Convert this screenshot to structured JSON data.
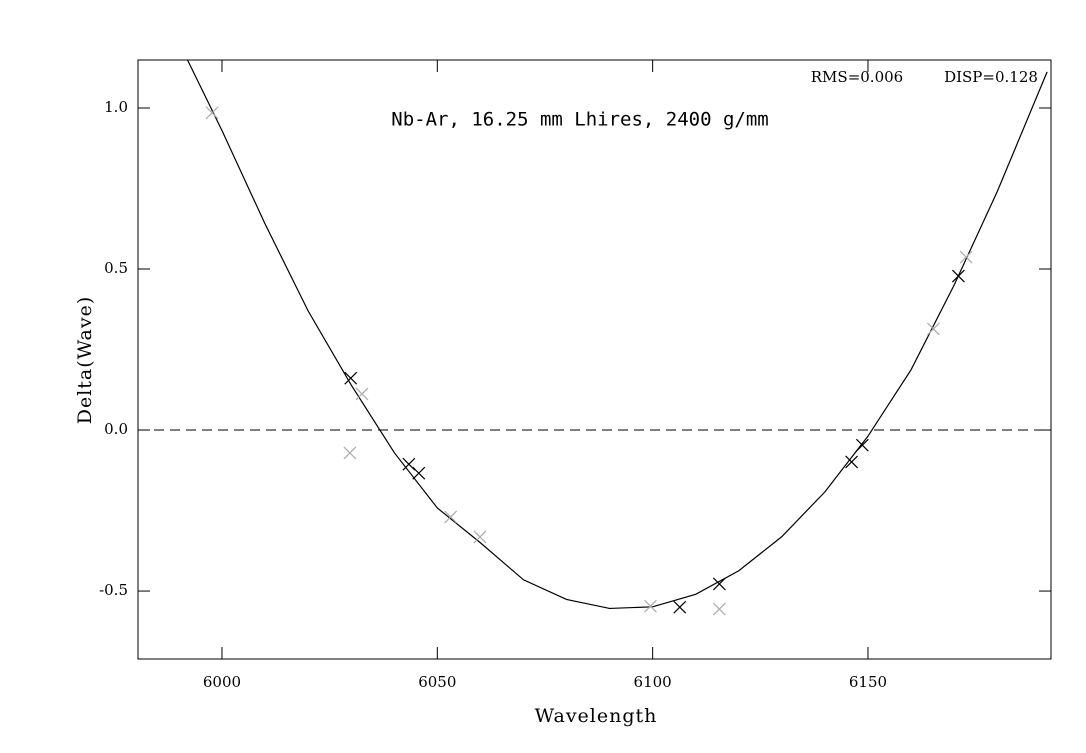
{
  "chart_data": {
    "type": "scatter",
    "title": "Nb-Ar, 16.25 mm Lhires, 2400 g/mm",
    "annotations": [
      "RMS=0.006",
      "DISP=0.128"
    ],
    "x_label": "Wavelength",
    "y_label": "Delta(Wave)",
    "xlim": [
      5980.5,
      6192.5
    ],
    "ylim": [
      -0.711,
      1.149
    ],
    "xticks": [
      6000,
      6050,
      6100,
      6150
    ],
    "yticks": [
      -0.5,
      {
        "value": 0,
        "label": "0.0"
      },
      0.5,
      {
        "value": 1,
        "label": "1.0"
      }
    ],
    "reference_line": 0,
    "fit": {
      "color": "#000000",
      "x": [
        5992,
        6000,
        6010,
        6020,
        6030,
        6040,
        6050,
        6060,
        6070,
        6080,
        6090,
        6100,
        6110,
        6120,
        6130,
        6140,
        6150,
        6160,
        6170,
        6180,
        6191.6
      ],
      "values": [
        1.149,
        0.93,
        0.64,
        0.37,
        0.14,
        -0.07,
        -0.242,
        -0.35,
        -0.465,
        -0.526,
        -0.554,
        -0.549,
        -0.51,
        -0.437,
        -0.331,
        -0.192,
        -0.019,
        0.187,
        0.45,
        0.74,
        1.112
      ]
    },
    "points": {
      "x": [
        5997.7,
        6029.9,
        6032.5,
        6029.7,
        6043.4,
        6045.7,
        6053.1,
        6059.9,
        6099.5,
        6106.3,
        6115.5,
        6115.5,
        6146.2,
        6148.7,
        6165.2,
        6171.0,
        6172.8
      ],
      "values": [
        0.985,
        0.161,
        0.112,
        -0.071,
        -0.106,
        -0.134,
        -0.27,
        -0.332,
        -0.547,
        -0.55,
        -0.478,
        -0.556,
        -0.099,
        -0.047,
        0.314,
        0.478,
        0.537
      ],
      "colors": [
        "#aaaaaa",
        "#000000",
        "#aaaaaa",
        "#aaaaaa",
        "#000000",
        "#000000",
        "#aaaaaa",
        "#aaaaaa",
        "#aaaaaa",
        "#000000",
        "#000000",
        "#aaaaaa",
        "#000000",
        "#000000",
        "#aaaaaa",
        "#000000",
        "#aaaaaa"
      ]
    }
  }
}
